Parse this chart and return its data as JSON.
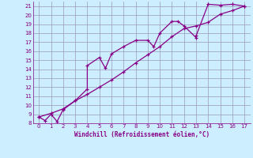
{
  "xlabel": "Windchill (Refroidissement éolien,°C)",
  "bg_color": "#cceeff",
  "grid_color": "#9999bb",
  "line_color": "#880088",
  "xlim": [
    -0.5,
    17.5
  ],
  "ylim": [
    8,
    21.5
  ],
  "xticks": [
    0,
    1,
    2,
    3,
    4,
    5,
    6,
    7,
    8,
    9,
    10,
    11,
    12,
    13,
    14,
    15,
    16,
    17
  ],
  "yticks": [
    8,
    9,
    10,
    11,
    12,
    13,
    14,
    15,
    16,
    17,
    18,
    19,
    20,
    21
  ],
  "line1_x": [
    0,
    0.5,
    1,
    1.5,
    2,
    3,
    4,
    4,
    5,
    5.5,
    6,
    7,
    8,
    9,
    9.5,
    10,
    11,
    11.5,
    12,
    13,
    13,
    14,
    15,
    16,
    17
  ],
  "line1_y": [
    8.7,
    8.3,
    9.0,
    8.2,
    9.5,
    10.5,
    11.8,
    14.4,
    15.3,
    14.1,
    15.7,
    16.5,
    17.2,
    17.2,
    16.5,
    18.0,
    19.3,
    19.3,
    18.8,
    17.5,
    17.7,
    21.2,
    21.1,
    21.2,
    21.0
  ],
  "line2_x": [
    0,
    1,
    2,
    3,
    4,
    5,
    6,
    7,
    8,
    9,
    10,
    11,
    12,
    13,
    14,
    15,
    16,
    17
  ],
  "line2_y": [
    8.7,
    9.1,
    9.6,
    10.5,
    11.2,
    12.0,
    12.8,
    13.7,
    14.7,
    15.6,
    16.5,
    17.6,
    18.5,
    18.8,
    19.2,
    20.1,
    20.5,
    21.0
  ]
}
